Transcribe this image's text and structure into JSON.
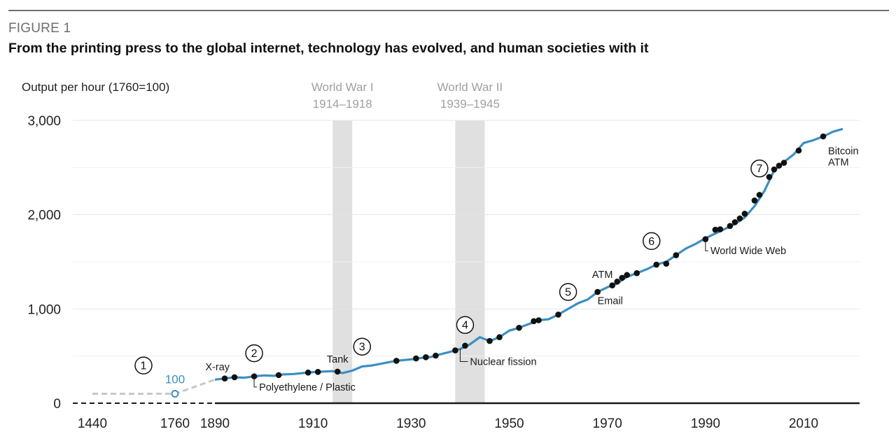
{
  "figure": {
    "label": "FIGURE 1",
    "title": "From the printing press to the global internet, technology has evolved, and human societies with it"
  },
  "chart_data": {
    "type": "line",
    "ylabel": "Output per hour (1760=100)",
    "ylim": [
      0,
      3000
    ],
    "yticks": [
      {
        "value": 0,
        "label": "0"
      },
      {
        "value": 1000,
        "label": "1,000"
      },
      {
        "value": 2000,
        "label": "2,000"
      },
      {
        "value": 3000,
        "label": "3,000"
      }
    ],
    "xticks": [
      "1440",
      "1760",
      "1890",
      "1910",
      "1930",
      "1950",
      "1970",
      "1990",
      "2010"
    ],
    "grid": true,
    "colors": {
      "line": "#3b8fc1",
      "marker": "#111111",
      "band": "#e0e0e0",
      "early": "#c8c8c8",
      "axis": "#1a1a1a",
      "grid": "#e4e4e4"
    },
    "early_segment": {
      "x": [
        "1440",
        "1760",
        "1890"
      ],
      "values": [
        100,
        100,
        250
      ],
      "highlight": {
        "x": "1760",
        "value": 100,
        "label": "100"
      }
    },
    "bands": [
      {
        "label": "World War I",
        "range_label": "1914–1918",
        "start": 1914,
        "end": 1918
      },
      {
        "label": "World War II",
        "range_label": "1939–1945",
        "start": 1939,
        "end": 1945
      }
    ],
    "series": {
      "x": [
        1890,
        1892,
        1894,
        1896,
        1898,
        1900,
        1902,
        1904,
        1906,
        1908,
        1910,
        1912,
        1914,
        1916,
        1918,
        1920,
        1922,
        1924,
        1926,
        1928,
        1930,
        1932,
        1934,
        1936,
        1938,
        1940,
        1942,
        1944,
        1946,
        1948,
        1950,
        1952,
        1954,
        1956,
        1958,
        1960,
        1962,
        1964,
        1966,
        1968,
        1970,
        1972,
        1974,
        1976,
        1978,
        1980,
        1982,
        1984,
        1986,
        1988,
        1990,
        1992,
        1994,
        1996,
        1998,
        2000,
        2002,
        2004,
        2006,
        2008,
        2010,
        2012,
        2014,
        2016,
        2018
      ],
      "values": [
        250,
        262,
        275,
        270,
        285,
        295,
        290,
        305,
        310,
        320,
        330,
        335,
        340,
        320,
        345,
        390,
        400,
        420,
        440,
        455,
        465,
        480,
        490,
        520,
        545,
        575,
        625,
        700,
        660,
        700,
        770,
        800,
        840,
        880,
        890,
        940,
        1000,
        1060,
        1100,
        1180,
        1230,
        1270,
        1340,
        1380,
        1420,
        1470,
        1500,
        1570,
        1640,
        1690,
        1750,
        1800,
        1850,
        1900,
        1970,
        2090,
        2250,
        2470,
        2560,
        2640,
        2760,
        2790,
        2830,
        2880,
        2910
      ]
    },
    "markers": [
      {
        "x": 1892,
        "value": 262
      },
      {
        "x": 1894,
        "value": 275
      },
      {
        "x": 1898,
        "value": 285
      },
      {
        "x": 1903,
        "value": 298
      },
      {
        "x": 1909,
        "value": 325
      },
      {
        "x": 1911,
        "value": 332
      },
      {
        "x": 1915,
        "value": 335
      },
      {
        "x": 1927,
        "value": 450
      },
      {
        "x": 1931,
        "value": 475
      },
      {
        "x": 1933,
        "value": 488
      },
      {
        "x": 1935,
        "value": 505
      },
      {
        "x": 1939,
        "value": 560
      },
      {
        "x": 1941,
        "value": 610
      },
      {
        "x": 1946,
        "value": 660
      },
      {
        "x": 1948,
        "value": 700
      },
      {
        "x": 1952,
        "value": 800
      },
      {
        "x": 1955,
        "value": 870
      },
      {
        "x": 1956,
        "value": 880
      },
      {
        "x": 1960,
        "value": 940
      },
      {
        "x": 1968,
        "value": 1180
      },
      {
        "x": 1971,
        "value": 1250
      },
      {
        "x": 1972,
        "value": 1290
      },
      {
        "x": 1973,
        "value": 1330
      },
      {
        "x": 1974,
        "value": 1360
      },
      {
        "x": 1976,
        "value": 1380
      },
      {
        "x": 1980,
        "value": 1470
      },
      {
        "x": 1982,
        "value": 1480
      },
      {
        "x": 1984,
        "value": 1570
      },
      {
        "x": 1990,
        "value": 1740
      },
      {
        "x": 1992,
        "value": 1840
      },
      {
        "x": 1993,
        "value": 1845
      },
      {
        "x": 1995,
        "value": 1880
      },
      {
        "x": 1996,
        "value": 1920
      },
      {
        "x": 1997,
        "value": 1960
      },
      {
        "x": 1998,
        "value": 2010
      },
      {
        "x": 2000,
        "value": 2150
      },
      {
        "x": 2001,
        "value": 2210
      },
      {
        "x": 2003,
        "value": 2400
      },
      {
        "x": 2004,
        "value": 2480
      },
      {
        "x": 2005,
        "value": 2520
      },
      {
        "x": 2006,
        "value": 2550
      },
      {
        "x": 2009,
        "value": 2680
      },
      {
        "x": 2014,
        "value": 2830
      }
    ],
    "annotations": [
      {
        "text": "X-ray",
        "x": 1893,
        "value": 350,
        "anchor": "end"
      },
      {
        "text": "Polyethylene / Plastic",
        "x": 1899,
        "value": 135,
        "anchor": "start",
        "leader": {
          "x": 1898,
          "value": 285
        }
      },
      {
        "text": "Tank",
        "x": 1915,
        "value": 430,
        "anchor": "middle"
      },
      {
        "text": "Nuclear fission",
        "x": 1942,
        "value": 405,
        "anchor": "start",
        "leader": {
          "x": 1940,
          "value": 575
        }
      },
      {
        "text": "ATM",
        "x": 1969,
        "value": 1330,
        "anchor": "middle"
      },
      {
        "text": "Email",
        "x": 1968,
        "value": 1050,
        "anchor": "start"
      },
      {
        "text": "World Wide Web",
        "x": 1991,
        "value": 1580,
        "anchor": "start",
        "leader": {
          "x": 1990,
          "value": 1740
        }
      },
      {
        "text": "Bitcoin",
        "x": 2015,
        "value": 2640,
        "anchor": "start"
      },
      {
        "text": "ATM",
        "x": 2015,
        "value": 2520,
        "anchor": "start"
      }
    ],
    "stages": [
      {
        "number": "1",
        "x": "1440-1760",
        "value": 400
      },
      {
        "number": "2",
        "x": 1898,
        "value": 530
      },
      {
        "number": "3",
        "x": 1920,
        "value": 600
      },
      {
        "number": "4",
        "x": 1941,
        "value": 830
      },
      {
        "number": "5",
        "x": 1962,
        "value": 1180
      },
      {
        "number": "6",
        "x": 1979,
        "value": 1720
      },
      {
        "number": "7",
        "x": 2001,
        "value": 2490
      }
    ]
  }
}
